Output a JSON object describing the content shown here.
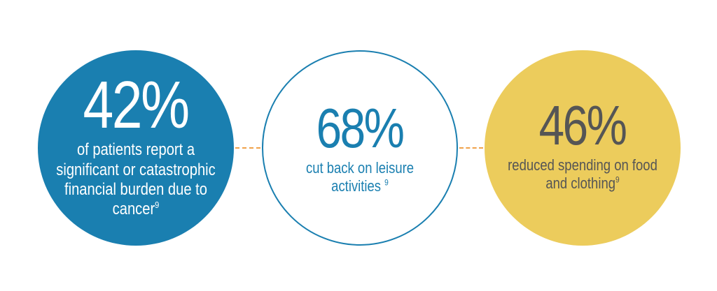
{
  "colors": {
    "blue": "#1a7fb0",
    "yellow": "#eccc5c",
    "gray_text": "#555555",
    "connector_orange": "#f0a24a"
  },
  "stats": [
    {
      "value": "42%",
      "lines": [
        "of patients report a",
        "significant or catastrophic",
        "financial burden due to",
        "cancer"
      ],
      "footnote": "9"
    },
    {
      "value": "68%",
      "lines": [
        "cut back on leisure",
        "activities"
      ],
      "footnote": "9"
    },
    {
      "value": "46%",
      "lines": [
        "reduced spending on food",
        "and clothing"
      ],
      "footnote": "9"
    }
  ]
}
